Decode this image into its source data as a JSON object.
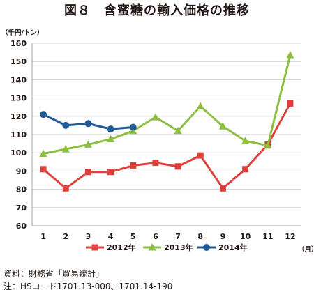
{
  "chart_data": {
    "type": "line",
    "title": "図８　含蜜糖の輸入価格の推移",
    "ylabel": "（千円/トン）",
    "xlabel": "（月）",
    "ylim": [
      60,
      160
    ],
    "yticks": [
      60,
      70,
      80,
      90,
      100,
      110,
      120,
      130,
      140,
      150,
      160
    ],
    "categories": [
      "1",
      "2",
      "3",
      "4",
      "5",
      "6",
      "7",
      "8",
      "9",
      "10",
      "11",
      "12"
    ],
    "grid": true,
    "legend_position": "bottom",
    "series": [
      {
        "name": "2012年",
        "color": "#e0403c",
        "marker": "square",
        "values": [
          91,
          80.5,
          89.5,
          89.5,
          93,
          94.5,
          92.5,
          98.5,
          80.5,
          91,
          104.5,
          127
        ]
      },
      {
        "name": "2013年",
        "color": "#8cbf3f",
        "marker": "triangle",
        "values": [
          99.5,
          102,
          104.5,
          107.5,
          112,
          119.5,
          112,
          125.5,
          114.5,
          106.5,
          104,
          153.5
        ]
      },
      {
        "name": "2014年",
        "color": "#1f5a96",
        "marker": "circle",
        "values": [
          121,
          115,
          116,
          113,
          114,
          null,
          null,
          null,
          null,
          null,
          null,
          null
        ]
      }
    ]
  },
  "footer": {
    "source": "資料：財務省「貿易統計」",
    "note": "注：HSコード1701.13-000、1701.14-190"
  }
}
